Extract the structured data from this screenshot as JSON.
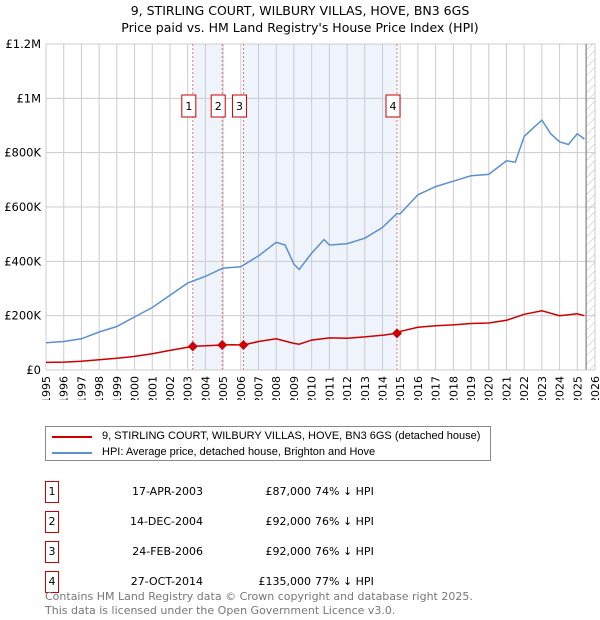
{
  "title": "9, STIRLING COURT, WILBURY VILLAS, HOVE, BN3 6GS",
  "subtitle": "Price paid vs. HM Land Registry's House Price Index (HPI)",
  "chart_data": {
    "type": "line",
    "title": "9, STIRLING COURT, WILBURY VILLAS, HOVE, BN3 6GS",
    "subtitle": "Price paid vs. HM Land Registry's House Price Index (HPI)",
    "xlim": [
      1995,
      2026
    ],
    "ylim": [
      0,
      1200000
    ],
    "yticks": [
      {
        "v": 0,
        "label": "£0"
      },
      {
        "v": 200000,
        "label": "£200K"
      },
      {
        "v": 400000,
        "label": "£400K"
      },
      {
        "v": 600000,
        "label": "£600K"
      },
      {
        "v": 800000,
        "label": "£800K"
      },
      {
        "v": 1000000,
        "label": "£1M"
      },
      {
        "v": 1200000,
        "label": "£1.2M"
      }
    ],
    "xticks": [
      "1995",
      "1996",
      "1997",
      "1998",
      "1999",
      "2000",
      "2001",
      "2002",
      "2003",
      "2004",
      "2005",
      "2006",
      "2007",
      "2008",
      "2009",
      "2010",
      "2011",
      "2012",
      "2013",
      "2014",
      "2015",
      "2016",
      "2017",
      "2018",
      "2019",
      "2020",
      "2021",
      "2022",
      "2023",
      "2024",
      "2025",
      "2026"
    ],
    "grid": true,
    "series": [
      {
        "name": "9, STIRLING COURT, WILBURY VILLAS, HOVE, BN3 6GS (detached house)",
        "color": "#cc0000",
        "x": [
          1995,
          1996,
          1997,
          1998,
          1999,
          2000,
          2001,
          2002,
          2003,
          2003.29,
          2004,
          2004.95,
          2005.5,
          2006.15,
          2007,
          2008,
          2009,
          2009.3,
          2010,
          2011,
          2012,
          2013,
          2014,
          2014.82,
          2015,
          2016,
          2017,
          2018,
          2019,
          2020,
          2021,
          2022,
          2023,
          2024,
          2025,
          2025.4
        ],
        "y": [
          28000,
          29000,
          32000,
          38000,
          43000,
          50000,
          60000,
          72000,
          84000,
          87000,
          89000,
          92000,
          93000,
          92000,
          105000,
          115000,
          98000,
          95000,
          110000,
          118000,
          117000,
          122000,
          128000,
          135000,
          142000,
          157000,
          163000,
          166000,
          171000,
          173000,
          183000,
          205000,
          218000,
          200000,
          207000,
          200000
        ]
      },
      {
        "name": "HPI: Average price, detached house, Brighton and Hove",
        "color": "#5b8fd4",
        "x": [
          1995,
          1996,
          1997,
          1998,
          1999,
          2000,
          2001,
          2002,
          2003,
          2004,
          2005,
          2006,
          2007,
          2008,
          2008.5,
          2009,
          2009.3,
          2010,
          2010.7,
          2011,
          2012,
          2013,
          2014,
          2014.8,
          2015,
          2016,
          2017,
          2018,
          2019,
          2020,
          2021,
          2021.5,
          2022,
          2022.5,
          2023,
          2023.5,
          2024,
          2024.5,
          2025,
          2025.4
        ],
        "y": [
          100000,
          105000,
          115000,
          140000,
          160000,
          195000,
          230000,
          275000,
          320000,
          345000,
          375000,
          380000,
          420000,
          470000,
          460000,
          390000,
          370000,
          430000,
          480000,
          460000,
          465000,
          485000,
          525000,
          575000,
          575000,
          645000,
          675000,
          695000,
          715000,
          720000,
          770000,
          765000,
          860000,
          890000,
          920000,
          870000,
          840000,
          830000,
          870000,
          850000
        ]
      }
    ],
    "sales": [
      {
        "n": "1",
        "x": 2003.29,
        "date": "17-APR-2003",
        "price_value": 87000,
        "price": "£87,000",
        "hpi": "74% ↓ HPI"
      },
      {
        "n": "2",
        "x": 2004.95,
        "date": "14-DEC-2004",
        "price_value": 92000,
        "price": "£92,000",
        "hpi": "76% ↓ HPI"
      },
      {
        "n": "3",
        "x": 2006.15,
        "date": "24-FEB-2006",
        "price_value": 92000,
        "price": "£92,000",
        "hpi": "76% ↓ HPI"
      },
      {
        "n": "4",
        "x": 2014.82,
        "date": "27-OCT-2014",
        "price_value": 135000,
        "price": "£135,000",
        "hpi": "77% ↓ HPI"
      }
    ],
    "shaded": [
      [
        2003.29,
        2004.95
      ],
      [
        2006.15,
        2014.82
      ]
    ],
    "forecast_start": 2025.5
  },
  "legend": {
    "red": "9, STIRLING COURT, WILBURY VILLAS, HOVE, BN3 6GS (detached house)",
    "blue": "HPI: Average price, detached house, Brighton and Hove"
  },
  "footer": {
    "line1": "Contains HM Land Registry data © Crown copyright and database right 2025.",
    "line2": "This data is licensed under the Open Government Licence v3.0."
  }
}
